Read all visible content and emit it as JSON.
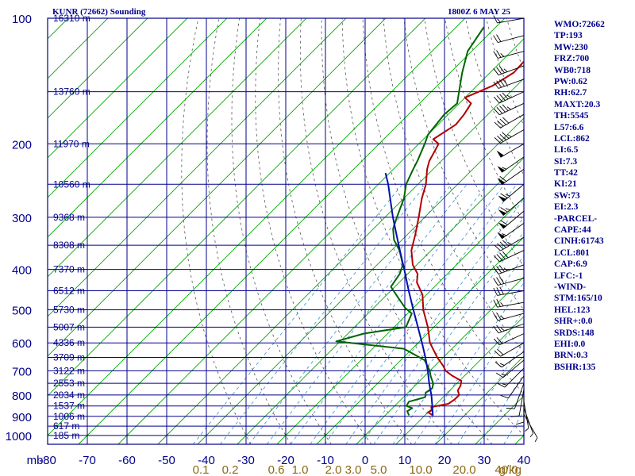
{
  "title_left": "KUNR (72662) Sounding",
  "title_right": "1800Z  6 MAY 25",
  "colors": {
    "frame": "#00008b",
    "temperature": "#b30000",
    "dewpoint": "#006400",
    "parcel": "#0010b0",
    "isotherm": "#00aa00",
    "dry_adiabat": "#555555",
    "mixing_ratio": "#3b8fd6",
    "mixing_label": "#8b6914",
    "text": "#00008b"
  },
  "chart_data": {
    "type": "skew-t log-p sounding",
    "pressure_unit_label": "mb",
    "pressure_ticks": [
      100,
      200,
      300,
      400,
      500,
      600,
      700,
      800,
      900,
      1000
    ],
    "pressure_range": [
      100,
      1050
    ],
    "temperature_ticks": [
      -80,
      -70,
      -60,
      -50,
      -40,
      -30,
      -20,
      -10,
      0,
      10,
      20,
      30,
      40
    ],
    "temperature_tick_labels": [
      "-80",
      "-70",
      "-60",
      "-50",
      "-40",
      "-30",
      "-20",
      "-10",
      "0",
      "10",
      "20",
      "30",
      "40"
    ],
    "mixing_ratio_labels": [
      "0.1",
      "0.2",
      "0.6",
      "1.0",
      "2.0",
      "3.0",
      "5.0",
      "10.0",
      "20.0",
      "40.0"
    ],
    "mixing_ratio_unit": "g/kg",
    "height_levels": [
      {
        "p": 100,
        "label": "16310 m"
      },
      {
        "p": 150,
        "label": "13760 m"
      },
      {
        "p": 200,
        "label": "11970 m"
      },
      {
        "p": 250,
        "label": "10560 m"
      },
      {
        "p": 300,
        "label": "9368 m"
      },
      {
        "p": 350,
        "label": "8308 m"
      },
      {
        "p": 400,
        "label": "7370 m"
      },
      {
        "p": 450,
        "label": "6512 m"
      },
      {
        "p": 500,
        "label": "5730 m"
      },
      {
        "p": 550,
        "label": "5007 m"
      },
      {
        "p": 600,
        "label": "4336 m"
      },
      {
        "p": 650,
        "label": "3709 m"
      },
      {
        "p": 700,
        "label": "3122 m"
      },
      {
        "p": 750,
        "label": "2553 m"
      },
      {
        "p": 800,
        "label": "2034 m"
      },
      {
        "p": 850,
        "label": "1537 m"
      },
      {
        "p": 900,
        "label": "1006 m"
      },
      {
        "p": 950,
        "label": "617 m"
      },
      {
        "p": 1000,
        "label": "185 m"
      }
    ],
    "series": [
      {
        "name": "temperature",
        "points": [
          [
            895,
            12
          ],
          [
            880,
            10
          ],
          [
            870,
            10.5
          ],
          [
            855,
            9.5
          ],
          [
            840,
            13
          ],
          [
            820,
            13.5
          ],
          [
            800,
            13.5
          ],
          [
            780,
            12
          ],
          [
            760,
            11.5
          ],
          [
            740,
            10.5
          ],
          [
            720,
            7
          ],
          [
            700,
            4
          ],
          [
            680,
            2
          ],
          [
            650,
            -1.5
          ],
          [
            600,
            -7
          ],
          [
            550,
            -11.5
          ],
          [
            500,
            -17
          ],
          [
            460,
            -21
          ],
          [
            430,
            -25.5
          ],
          [
            410,
            -27.5
          ],
          [
            390,
            -31
          ],
          [
            360,
            -35
          ],
          [
            330,
            -38
          ],
          [
            300,
            -41.5
          ],
          [
            270,
            -45.5
          ],
          [
            250,
            -48
          ],
          [
            230,
            -51.5
          ],
          [
            220,
            -53
          ],
          [
            200,
            -55
          ],
          [
            195,
            -57.5
          ],
          [
            180,
            -55.5
          ],
          [
            170,
            -56
          ],
          [
            160,
            -57
          ],
          [
            155,
            -60
          ],
          [
            145,
            -56
          ],
          [
            135,
            -54
          ],
          [
            120,
            -54.5
          ],
          [
            100,
            -55.5
          ]
        ]
      },
      {
        "name": "dewpoint",
        "points": [
          [
            895,
            6
          ],
          [
            875,
            4.5
          ],
          [
            860,
            5
          ],
          [
            850,
            3
          ],
          [
            830,
            2.5
          ],
          [
            810,
            5.5
          ],
          [
            790,
            4.5
          ],
          [
            770,
            5
          ],
          [
            750,
            4
          ],
          [
            720,
            1.5
          ],
          [
            700,
            0
          ],
          [
            660,
            -4
          ],
          [
            620,
            -12
          ],
          [
            595,
            -31
          ],
          [
            570,
            -26
          ],
          [
            550,
            -17
          ],
          [
            530,
            -18
          ],
          [
            510,
            -19
          ],
          [
            495,
            -22
          ],
          [
            470,
            -26
          ],
          [
            440,
            -31
          ],
          [
            410,
            -32
          ],
          [
            390,
            -33.5
          ],
          [
            360,
            -38
          ],
          [
            340,
            -42
          ],
          [
            320,
            -45
          ],
          [
            300,
            -47
          ],
          [
            270,
            -50
          ],
          [
            250,
            -53
          ],
          [
            230,
            -55
          ],
          [
            220,
            -56
          ],
          [
            200,
            -58.5
          ],
          [
            190,
            -60
          ],
          [
            170,
            -61
          ],
          [
            160,
            -60.5
          ],
          [
            150,
            -63
          ],
          [
            135,
            -67
          ],
          [
            120,
            -71
          ],
          [
            105,
            -73
          ]
        ]
      },
      {
        "name": "parcel",
        "points": [
          [
            895,
            12
          ],
          [
            850,
            9.5
          ],
          [
            800,
            6.5
          ],
          [
            750,
            3
          ],
          [
            700,
            -0.5
          ],
          [
            650,
            -4.5
          ],
          [
            600,
            -9
          ],
          [
            550,
            -14
          ],
          [
            500,
            -19.5
          ],
          [
            450,
            -25.5
          ],
          [
            400,
            -32
          ],
          [
            350,
            -39.5
          ],
          [
            300,
            -48
          ],
          [
            270,
            -53.5
          ],
          [
            250,
            -57.5
          ],
          [
            235,
            -61
          ]
        ]
      }
    ],
    "wind_barbs": [
      {
        "p": 100,
        "dir": 260,
        "spd": 15
      },
      {
        "p": 110,
        "dir": 255,
        "spd": 20
      },
      {
        "p": 120,
        "dir": 255,
        "spd": 25
      },
      {
        "p": 130,
        "dir": 250,
        "spd": 35
      },
      {
        "p": 140,
        "dir": 250,
        "spd": 40
      },
      {
        "p": 150,
        "dir": 245,
        "spd": 45
      },
      {
        "p": 160,
        "dir": 245,
        "spd": 45
      },
      {
        "p": 170,
        "dir": 240,
        "spd": 40
      },
      {
        "p": 185,
        "dir": 240,
        "spd": 45
      },
      {
        "p": 200,
        "dir": 240,
        "spd": 50
      },
      {
        "p": 215,
        "dir": 235,
        "spd": 55
      },
      {
        "p": 230,
        "dir": 235,
        "spd": 60
      },
      {
        "p": 250,
        "dir": 230,
        "spd": 65
      },
      {
        "p": 270,
        "dir": 230,
        "spd": 65
      },
      {
        "p": 290,
        "dir": 230,
        "spd": 60
      },
      {
        "p": 310,
        "dir": 235,
        "spd": 55
      },
      {
        "p": 335,
        "dir": 240,
        "spd": 45
      },
      {
        "p": 360,
        "dir": 245,
        "spd": 40
      },
      {
        "p": 390,
        "dir": 250,
        "spd": 35
      },
      {
        "p": 420,
        "dir": 255,
        "spd": 30
      },
      {
        "p": 450,
        "dir": 260,
        "spd": 30
      },
      {
        "p": 480,
        "dir": 260,
        "spd": 25
      },
      {
        "p": 510,
        "dir": 255,
        "spd": 25
      },
      {
        "p": 540,
        "dir": 250,
        "spd": 25
      },
      {
        "p": 570,
        "dir": 245,
        "spd": 20
      },
      {
        "p": 600,
        "dir": 240,
        "spd": 20
      },
      {
        "p": 630,
        "dir": 235,
        "spd": 15
      },
      {
        "p": 660,
        "dir": 230,
        "spd": 15
      },
      {
        "p": 690,
        "dir": 225,
        "spd": 15
      },
      {
        "p": 720,
        "dir": 215,
        "spd": 10
      },
      {
        "p": 750,
        "dir": 200,
        "spd": 10
      },
      {
        "p": 775,
        "dir": 190,
        "spd": 10
      },
      {
        "p": 800,
        "dir": 180,
        "spd": 10
      },
      {
        "p": 830,
        "dir": 170,
        "spd": 5
      },
      {
        "p": 860,
        "dir": 160,
        "spd": 5
      },
      {
        "p": 890,
        "dir": 150,
        "spd": 5
      }
    ]
  },
  "indices": [
    "WMO:72662",
    "TP:193",
    "MW:230",
    "FRZ:700",
    "WB0:718",
    "PW:0.62",
    "RH:62.7",
    "MAXT:20.3",
    "TH:5545",
    "L57:6.6",
    "LCL:862",
    "LI:6.5",
    "SI:7.3",
    "TT:42",
    "KI:21",
    "SW:73",
    "EI:2.3",
    "-PARCEL-",
    "CAPE:44",
    "CINH:61743",
    "LCL:801",
    "CAP:6.9",
    "LFC:-1",
    "-WIND-",
    "STM:165/10",
    "HEL:123",
    "SHR+:0.0",
    "SRDS:148",
    "EHI:0.0",
    "BRN:0.3",
    "BSHR:135"
  ]
}
